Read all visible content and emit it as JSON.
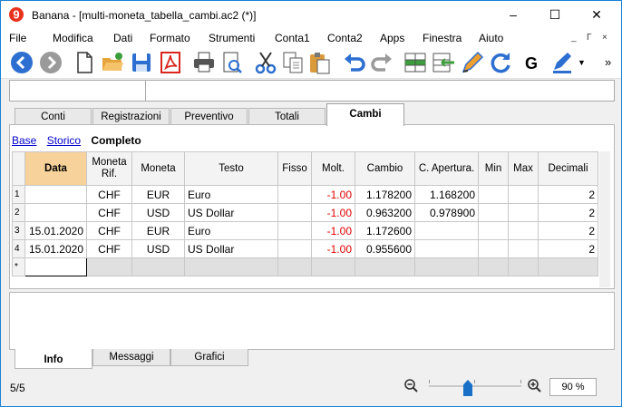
{
  "window": {
    "app_name": "Banana",
    "title": "Banana - [multi-moneta_tabella_cambi.ac2 (*)]",
    "minimize_glyph": "–",
    "maximize_glyph": "☐",
    "close_glyph": "✕"
  },
  "menu": {
    "items": [
      "File",
      "Modifica",
      "Dati",
      "Formato",
      "Strumenti",
      "Conta1",
      "Conta2",
      "Apps",
      "Finestra",
      "Aiuto"
    ],
    "mdi_buttons": [
      "_",
      "Г",
      "×"
    ]
  },
  "toolbar": {
    "icons": [
      "back-icon",
      "forward-icon",
      "new-document-icon",
      "open-folder-icon",
      "save-icon",
      "pdf-icon",
      "print-icon",
      "print-preview-icon",
      "cut-icon",
      "copy-icon",
      "paste-icon",
      "undo-icon",
      "redo-icon",
      "insert-row-icon",
      "delete-row-icon",
      "edit-icon",
      "recheck-icon",
      "g-icon",
      "pen-icon",
      "more-icon"
    ],
    "g_label": "G",
    "more_label": "»"
  },
  "tabs": [
    "Conti",
    "Registrazioni",
    "Preventivo",
    "Totali",
    "Cambi"
  ],
  "active_tab": "Cambi",
  "views": {
    "base": "Base",
    "storico": "Storico",
    "completo": "Completo"
  },
  "table": {
    "columns": [
      "Data",
      "Moneta Rif.",
      "Moneta",
      "Testo",
      "Fisso",
      "Molt.",
      "Cambio",
      "C. Apertura.",
      "Min",
      "Max",
      "Decimali"
    ],
    "rows": [
      {
        "n": "1",
        "data": "",
        "rif": "CHF",
        "moneta": "EUR",
        "testo": "Euro",
        "fisso": "",
        "molt": "-1.00",
        "cambio": "1.178200",
        "apertura": "1.168200",
        "min": "",
        "max": "",
        "decimali": "2"
      },
      {
        "n": "2",
        "data": "",
        "rif": "CHF",
        "moneta": "USD",
        "testo": "US Dollar",
        "fisso": "",
        "molt": "-1.00",
        "cambio": "0.963200",
        "apertura": "0.978900",
        "min": "",
        "max": "",
        "decimali": "2"
      },
      {
        "n": "3",
        "data": "15.01.2020",
        "rif": "CHF",
        "moneta": "EUR",
        "testo": "Euro",
        "fisso": "",
        "molt": "-1.00",
        "cambio": "1.172600",
        "apertura": "",
        "min": "",
        "max": "",
        "decimali": "2"
      },
      {
        "n": "4",
        "data": "15.01.2020",
        "rif": "CHF",
        "moneta": "USD",
        "testo": "US Dollar",
        "fisso": "",
        "molt": "-1.00",
        "cambio": "0.955600",
        "apertura": "",
        "min": "",
        "max": "",
        "decimali": "2"
      }
    ],
    "new_row_marker": "*"
  },
  "bottom_tabs": [
    "Info",
    "Messaggi",
    "Grafici"
  ],
  "status": {
    "page": "5/5",
    "zoom": "90 %",
    "zoom_percent": 90
  },
  "colors": {
    "accent": "#1883d7",
    "selected_header": "#f7d29a",
    "negative": "#e00000"
  }
}
